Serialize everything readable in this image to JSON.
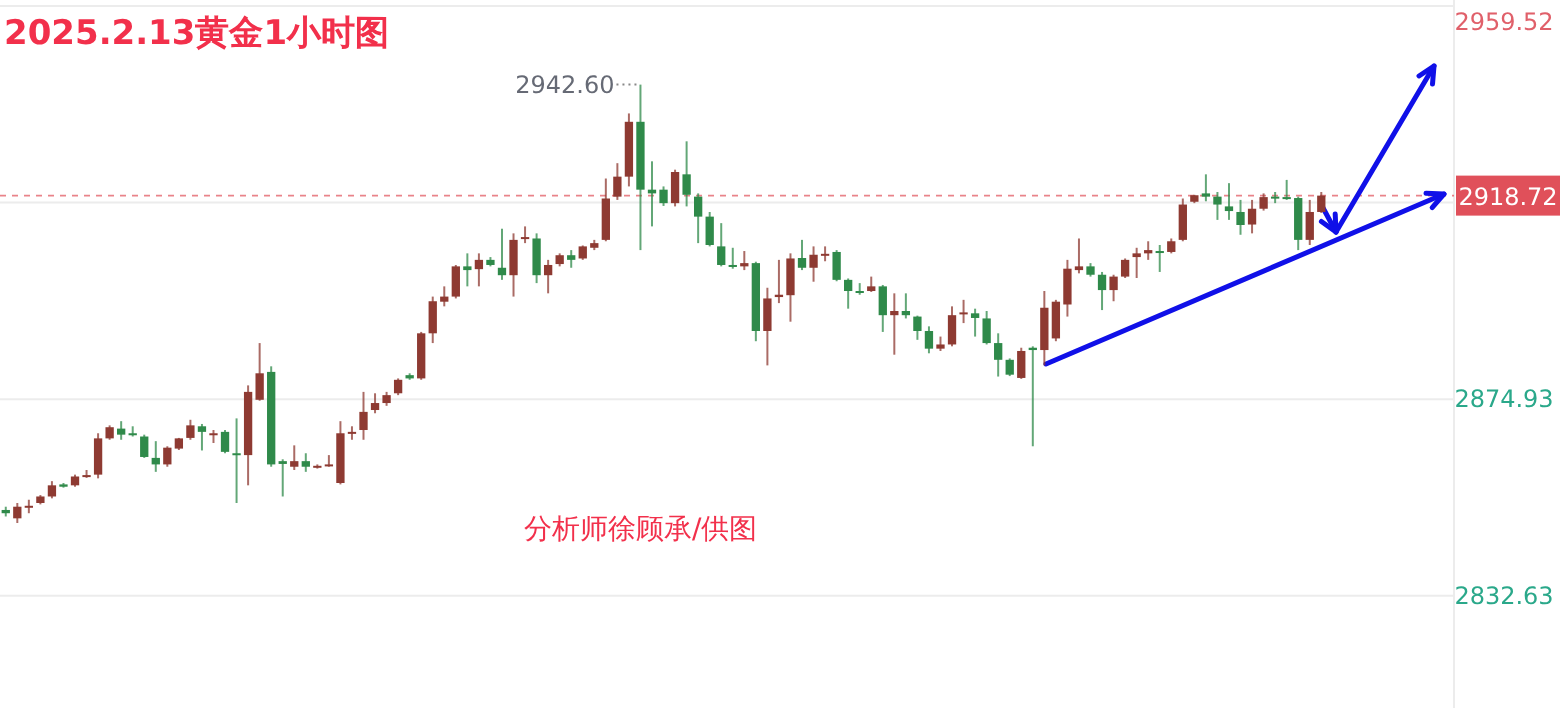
{
  "chart_data": {
    "type": "candlestick",
    "title": "2025.2.13黄金1小时图",
    "categories": [
      null,
      null,
      null,
      null,
      null,
      null,
      null,
      null,
      null,
      null,
      null,
      null,
      null,
      null,
      null,
      null,
      null,
      null,
      null,
      null,
      null,
      null,
      null,
      null,
      null,
      null,
      null,
      null,
      null,
      null,
      null,
      null,
      null,
      null,
      null,
      null,
      null,
      null,
      null,
      null,
      null,
      null,
      null,
      null,
      null,
      null,
      null,
      null,
      null,
      null,
      null,
      null,
      null,
      null,
      null,
      null,
      null,
      null,
      null,
      null,
      null,
      null,
      null,
      null,
      null,
      null,
      null,
      null,
      null,
      null,
      null,
      null,
      null,
      null,
      null,
      null,
      null,
      null,
      null,
      null,
      null,
      null,
      null,
      null,
      null,
      null,
      null,
      null,
      null,
      null,
      null,
      null,
      null,
      null,
      null,
      null,
      null,
      null,
      null,
      null,
      null,
      null,
      null,
      null,
      null,
      null,
      null,
      null,
      null,
      null,
      null,
      null,
      null,
      null,
      null,
      null,
      null,
      null,
      null,
      null,
      null,
      null,
      null,
      null,
      null,
      null
    ],
    "ohlc": [
      [
        2851.1,
        2851.8,
        2849.7,
        2850.4
      ],
      [
        2849.3,
        2852.6,
        2848.3,
        2851.8
      ],
      [
        2851.8,
        2853.3,
        2850.4,
        2852.0
      ],
      [
        2852.6,
        2854.3,
        2852.3,
        2854.0
      ],
      [
        2854.0,
        2857.3,
        2853.6,
        2856.4
      ],
      [
        2856.6,
        2856.9,
        2855.9,
        2856.1
      ],
      [
        2856.4,
        2858.7,
        2856.1,
        2858.3
      ],
      [
        2858.3,
        2859.7,
        2858.0,
        2858.6
      ],
      [
        2858.7,
        2867.6,
        2857.9,
        2866.5
      ],
      [
        2866.5,
        2869.3,
        2866.2,
        2868.9
      ],
      [
        2868.6,
        2870.2,
        2866.2,
        2867.3
      ],
      [
        2867.6,
        2869.1,
        2866.9,
        2867.3
      ],
      [
        2866.9,
        2867.3,
        2862.3,
        2862.5
      ],
      [
        2862.3,
        2865.9,
        2859.3,
        2860.9
      ],
      [
        2860.9,
        2864.8,
        2860.4,
        2864.5
      ],
      [
        2864.3,
        2866.6,
        2864.0,
        2866.5
      ],
      [
        2866.6,
        2870.5,
        2866.2,
        2869.3
      ],
      [
        2869.1,
        2869.6,
        2863.9,
        2867.9
      ],
      [
        2867.4,
        2868.3,
        2865.5,
        2867.6
      ],
      [
        2867.9,
        2868.3,
        2863.3,
        2863.6
      ],
      [
        2863.3,
        2870.8,
        2852.6,
        2862.9
      ],
      [
        2862.9,
        2877.9,
        2856.4,
        2876.5
      ],
      [
        2874.8,
        2887.0,
        2874.6,
        2880.5
      ],
      [
        2880.8,
        2882.0,
        2860.4,
        2860.9
      ],
      [
        2861.6,
        2862.0,
        2854.0,
        2861.0
      ],
      [
        2860.4,
        2865.0,
        2859.7,
        2861.6
      ],
      [
        2861.6,
        2863.3,
        2859.3,
        2860.4
      ],
      [
        2860.4,
        2860.9,
        2860.0,
        2860.6
      ],
      [
        2860.6,
        2862.9,
        2860.4,
        2860.9
      ],
      [
        2856.9,
        2870.2,
        2856.6,
        2867.6
      ],
      [
        2867.6,
        2869.1,
        2866.2,
        2867.9
      ],
      [
        2868.3,
        2876.5,
        2866.2,
        2872.2
      ],
      [
        2872.6,
        2876.2,
        2871.9,
        2874.1
      ],
      [
        2874.1,
        2876.5,
        2873.5,
        2875.8
      ],
      [
        2876.2,
        2879.4,
        2875.8,
        2879.1
      ],
      [
        2880.1,
        2880.5,
        2879.1,
        2879.4
      ],
      [
        2879.4,
        2889.4,
        2879.1,
        2889.1
      ],
      [
        2889.1,
        2897.0,
        2887.0,
        2896.0
      ],
      [
        2895.9,
        2899.2,
        2894.9,
        2897.0
      ],
      [
        2897.0,
        2903.8,
        2896.6,
        2903.5
      ],
      [
        2903.5,
        2906.3,
        2899.2,
        2902.7
      ],
      [
        2902.9,
        2906.3,
        2899.2,
        2904.9
      ],
      [
        2904.9,
        2905.5,
        2903.5,
        2903.8
      ],
      [
        2903.2,
        2911.6,
        2900.6,
        2901.6
      ],
      [
        2901.6,
        2910.6,
        2897.0,
        2909.2
      ],
      [
        2909.5,
        2912.1,
        2908.5,
        2909.8
      ],
      [
        2909.5,
        2910.6,
        2899.9,
        2901.6
      ],
      [
        2901.6,
        2904.9,
        2897.7,
        2903.8
      ],
      [
        2904.0,
        2906.3,
        2903.5,
        2905.9
      ],
      [
        2905.9,
        2907.0,
        2903.2,
        2904.9
      ],
      [
        2905.2,
        2908.0,
        2904.9,
        2907.8
      ],
      [
        2907.5,
        2909.2,
        2907.0,
        2908.5
      ],
      [
        2909.2,
        2922.4,
        2908.9,
        2918.1
      ],
      [
        2918.5,
        2925.7,
        2917.8,
        2922.8
      ],
      [
        2922.8,
        2936.4,
        2920.7,
        2934.6
      ],
      [
        2934.6,
        2942.6,
        2907.0,
        2920.0
      ],
      [
        2920.0,
        2926.1,
        2912.1,
        2919.2
      ],
      [
        2920.0,
        2920.7,
        2916.5,
        2917.1
      ],
      [
        2917.1,
        2924.3,
        2916.4,
        2923.8
      ],
      [
        2923.3,
        2930.4,
        2916.4,
        2918.9
      ],
      [
        2918.5,
        2919.2,
        2908.5,
        2914.2
      ],
      [
        2914.2,
        2915.2,
        2907.8,
        2908.1
      ],
      [
        2907.8,
        2912.8,
        2903.5,
        2903.8
      ],
      [
        2903.8,
        2907.5,
        2903.0,
        2903.5
      ],
      [
        2903.5,
        2906.8,
        2902.7,
        2904.2
      ],
      [
        2904.2,
        2904.5,
        2887.4,
        2889.6
      ],
      [
        2889.6,
        2898.9,
        2882.2,
        2896.6
      ],
      [
        2896.9,
        2904.9,
        2895.6,
        2897.4
      ],
      [
        2897.3,
        2906.3,
        2891.6,
        2905.2
      ],
      [
        2905.3,
        2909.2,
        2902.7,
        2903.2
      ],
      [
        2903.2,
        2907.8,
        2900.2,
        2906.0
      ],
      [
        2906.0,
        2907.8,
        2904.6,
        2906.2
      ],
      [
        2906.6,
        2907.0,
        2900.3,
        2900.6
      ],
      [
        2900.6,
        2900.9,
        2894.4,
        2898.2
      ],
      [
        2898.2,
        2899.9,
        2897.4,
        2898.0
      ],
      [
        2898.2,
        2901.3,
        2898.0,
        2899.2
      ],
      [
        2899.2,
        2899.5,
        2889.4,
        2893.0
      ],
      [
        2893.0,
        2897.7,
        2884.5,
        2893.9
      ],
      [
        2893.9,
        2897.7,
        2892.3,
        2893.0
      ],
      [
        2892.7,
        2892.9,
        2887.7,
        2889.6
      ],
      [
        2889.6,
        2890.6,
        2884.8,
        2885.8
      ],
      [
        2885.8,
        2888.4,
        2885.3,
        2886.7
      ],
      [
        2886.7,
        2894.9,
        2886.3,
        2893.0
      ],
      [
        2893.4,
        2896.3,
        2891.3,
        2893.6
      ],
      [
        2893.4,
        2894.4,
        2888.4,
        2892.4
      ],
      [
        2892.3,
        2893.9,
        2886.7,
        2887.0
      ],
      [
        2887.0,
        2889.1,
        2879.8,
        2883.4
      ],
      [
        2883.4,
        2883.7,
        2879.9,
        2880.2
      ],
      [
        2879.5,
        2886.0,
        2879.3,
        2885.3
      ],
      [
        2886.0,
        2886.3,
        2864.8,
        2885.5
      ],
      [
        2885.5,
        2898.2,
        2882.2,
        2894.6
      ],
      [
        2888.0,
        2896.3,
        2887.4,
        2895.9
      ],
      [
        2895.3,
        2904.9,
        2892.7,
        2903.0
      ],
      [
        2902.7,
        2909.5,
        2902.0,
        2903.5
      ],
      [
        2903.5,
        2904.2,
        2901.3,
        2901.7
      ],
      [
        2901.7,
        2902.3,
        2894.1,
        2898.4
      ],
      [
        2898.4,
        2901.7,
        2896.0,
        2901.3
      ],
      [
        2901.3,
        2905.2,
        2901.0,
        2904.9
      ],
      [
        2905.5,
        2907.5,
        2901.0,
        2906.3
      ],
      [
        2906.3,
        2908.9,
        2904.9,
        2907.0
      ],
      [
        2906.8,
        2908.1,
        2902.3,
        2906.6
      ],
      [
        2906.6,
        2909.5,
        2906.3,
        2908.9
      ],
      [
        2909.2,
        2918.1,
        2908.9,
        2916.8
      ],
      [
        2917.4,
        2918.9,
        2917.1,
        2918.8
      ],
      [
        2919.2,
        2923.3,
        2917.5,
        2918.5
      ],
      [
        2918.5,
        2919.5,
        2913.5,
        2916.8
      ],
      [
        2916.4,
        2921.4,
        2913.5,
        2915.4
      ],
      [
        2915.2,
        2917.8,
        2910.3,
        2912.4
      ],
      [
        2912.5,
        2917.8,
        2910.6,
        2915.9
      ],
      [
        2915.9,
        2919.2,
        2915.5,
        2918.4
      ],
      [
        2918.5,
        2919.5,
        2917.1,
        2918.2
      ],
      [
        2918.4,
        2922.1,
        2917.8,
        2918.2
      ],
      [
        2918.2,
        2918.5,
        2907.0,
        2909.2
      ],
      [
        2909.2,
        2917.8,
        2908.1,
        2915.2
      ],
      [
        2915.2,
        2919.5,
        2915.0,
        2918.72
      ],
      null,
      null,
      null,
      null,
      null,
      null,
      null,
      null,
      null,
      null,
      null
    ],
    "colors": [
      "#2f8a4a",
      "#8e3a32",
      "#8e3a32",
      "#8e3a32",
      "#8e3a32",
      "#2f8a4a",
      "#8e3a32",
      "#8e3a32",
      "#8e3a32",
      "#8e3a32",
      "#2f8a4a",
      "#2f8a4a",
      "#2f8a4a",
      "#2f8a4a",
      "#8e3a32",
      "#8e3a32",
      "#8e3a32",
      "#2f8a4a",
      "#8e3a32",
      "#2f8a4a",
      "#2f8a4a",
      "#8e3a32",
      "#8e3a32",
      "#2f8a4a",
      "#2f8a4a",
      "#8e3a32",
      "#2f8a4a",
      "#8e3a32",
      "#8e3a32",
      "#8e3a32",
      "#8e3a32",
      "#8e3a32",
      "#8e3a32",
      "#8e3a32",
      "#8e3a32",
      "#2f8a4a",
      "#8e3a32",
      "#8e3a32",
      "#8e3a32",
      "#8e3a32",
      "#2f8a4a",
      "#8e3a32",
      "#2f8a4a",
      "#2f8a4a",
      "#8e3a32",
      "#8e3a32",
      "#2f8a4a",
      "#8e3a32",
      "#8e3a32",
      "#2f8a4a",
      "#8e3a32",
      "#8e3a32",
      "#8e3a32",
      "#8e3a32",
      "#8e3a32",
      "#2f8a4a",
      "#2f8a4a",
      "#2f8a4a",
      "#8e3a32",
      "#2f8a4a",
      "#2f8a4a",
      "#2f8a4a",
      "#2f8a4a",
      "#2f8a4a",
      "#8e3a32",
      "#2f8a4a",
      "#8e3a32",
      "#8e3a32",
      "#8e3a32",
      "#2f8a4a",
      "#8e3a32",
      "#8e3a32",
      "#2f8a4a",
      "#2f8a4a",
      "#2f8a4a",
      "#8e3a32",
      "#2f8a4a",
      "#8e3a32",
      "#2f8a4a",
      "#2f8a4a",
      "#2f8a4a",
      "#8e3a32",
      "#8e3a32",
      "#8e3a32",
      "#2f8a4a",
      "#2f8a4a",
      "#2f8a4a",
      "#2f8a4a",
      "#8e3a32",
      "#2f8a4a",
      "#8e3a32",
      "#8e3a32",
      "#8e3a32",
      "#8e3a32",
      "#2f8a4a",
      "#2f8a4a",
      "#8e3a32",
      "#8e3a32",
      "#8e3a32",
      "#8e3a32",
      "#2f8a4a",
      "#8e3a32",
      "#8e3a32",
      "#8e3a32",
      "#2f8a4a",
      "#2f8a4a",
      "#2f8a4a",
      "#2f8a4a",
      "#8e3a32",
      "#8e3a32",
      "#2f8a4a",
      "#2f8a4a",
      "#2f8a4a",
      "#8e3a32",
      "#8e3a32",
      null,
      null,
      null,
      null,
      null,
      null,
      null,
      null,
      null,
      null,
      null
    ],
    "ylim": [
      2808.5,
      2960.8
    ],
    "yticks": [
      2832.63,
      2874.93,
      {
        "value": 2917.23,
        "label": null
      },
      2959.52
    ],
    "grid": "y",
    "tick_labels": "y",
    "ref_lines": [
      {
        "axis": "y",
        "value": 2918.72,
        "label": "2918.72",
        "color": "#e0505a",
        "line_style": "dashed"
      }
    ],
    "annotations": [
      "2942.60",
      "分析师徐顾承/供图"
    ]
  }
}
